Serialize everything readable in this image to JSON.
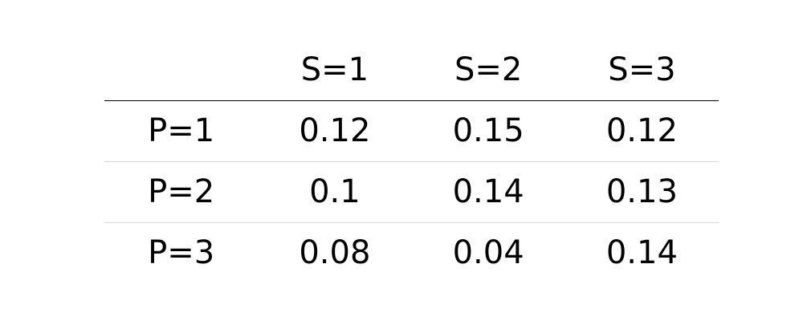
{
  "chart_data": {
    "type": "table",
    "columns": [
      "",
      "S=1",
      "S=2",
      "S=3"
    ],
    "rows": [
      {
        "label": "P=1",
        "values": [
          "0.12",
          "0.15",
          "0.12"
        ]
      },
      {
        "label": "P=2",
        "values": [
          "0.1",
          "0.14",
          "0.13"
        ]
      },
      {
        "label": "P=3",
        "values": [
          "0.08",
          "0.04",
          "0.14"
        ]
      }
    ]
  }
}
